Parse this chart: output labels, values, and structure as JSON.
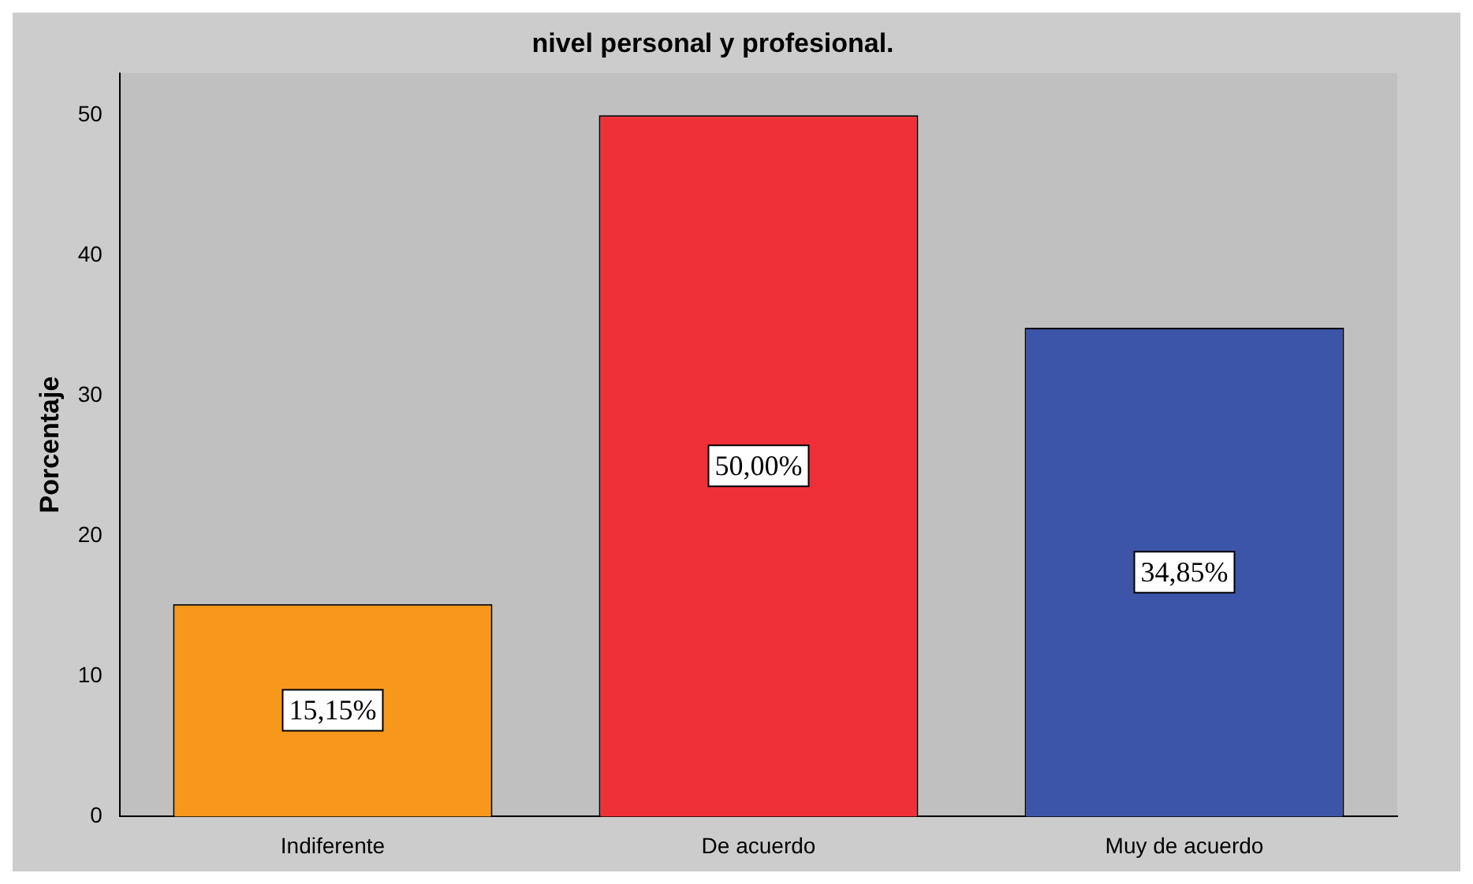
{
  "chart_data": {
    "type": "bar",
    "title": "nivel personal y profesional.",
    "ylabel": "Porcentaje",
    "categories": [
      "Indiferente",
      "De acuerdo",
      "Muy de acuerdo"
    ],
    "values": [
      15.15,
      50.0,
      34.85
    ],
    "colors": [
      "#f7981d",
      "#ef3038",
      "#3d55a8"
    ],
    "value_labels": [
      "15,15%",
      "50,00%",
      "34,85%"
    ],
    "ylim": [
      0,
      53
    ],
    "yticks": [
      0,
      10,
      20,
      30,
      40,
      50
    ],
    "grid": false,
    "legend": false
  }
}
